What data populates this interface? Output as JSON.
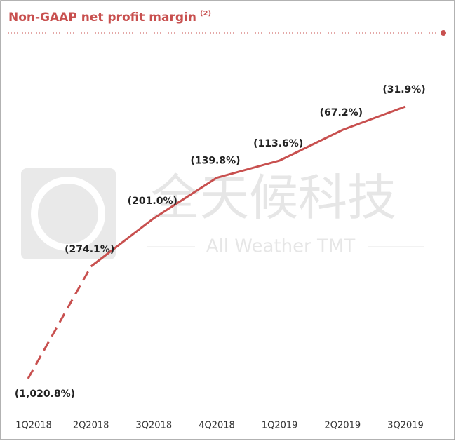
{
  "chart_data": {
    "type": "line",
    "title": "Non-GAAP net profit margin",
    "title_note": "(2)",
    "watermark": "全天候科技",
    "watermark_subtitle": "All Weather TMT",
    "categories": [
      "1Q2018",
      "2Q2018",
      "3Q2018",
      "4Q2018",
      "1Q2019",
      "2Q2019",
      "3Q2019"
    ],
    "values": [
      -1020.8,
      -274.1,
      -201.0,
      -139.8,
      -113.6,
      -67.2,
      -31.9
    ],
    "value_labels": [
      "(1,020.8%)",
      "(274.1%)",
      "(201.0%)",
      "(139.8%)",
      "(113.6%)",
      "(67.2%)",
      "(31.9%)"
    ],
    "color": "#c8504f",
    "broken_first_point": true
  }
}
